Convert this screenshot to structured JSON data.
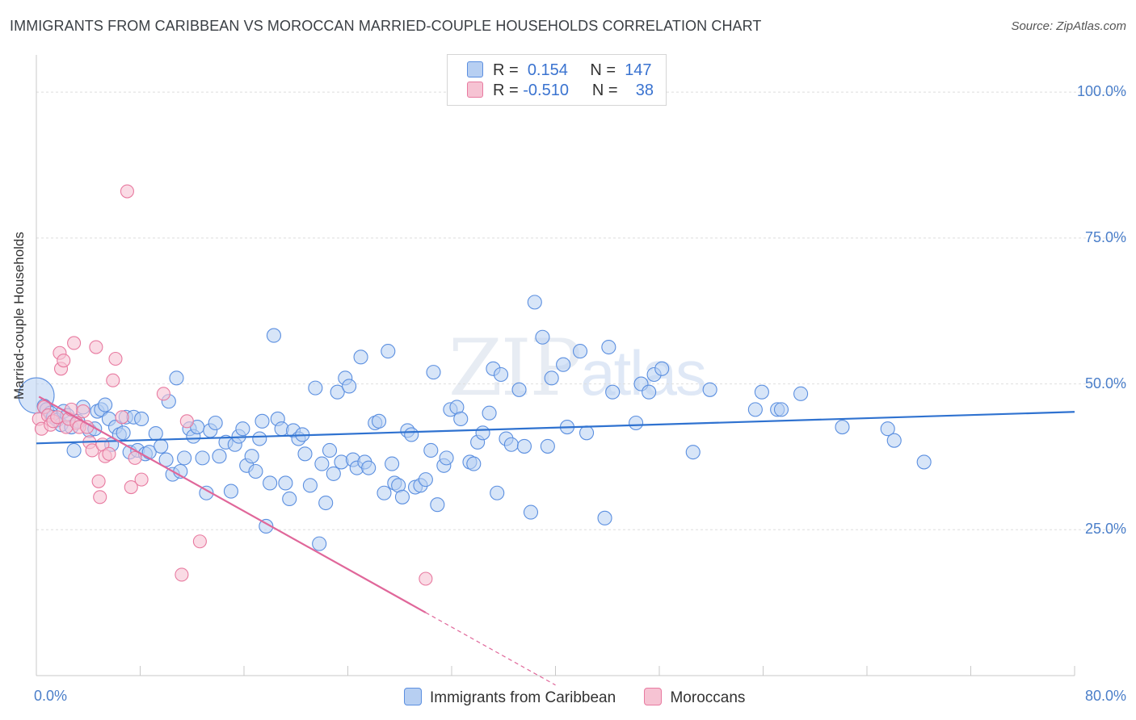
{
  "title": "IMMIGRANTS FROM CARIBBEAN VS MOROCCAN MARRIED-COUPLE HOUSEHOLDS CORRELATION CHART",
  "source": "Source: ZipAtlas.com",
  "watermark": {
    "zip": "ZIP",
    "atlas": "atlas"
  },
  "colors": {
    "blue": "#5b8fe0",
    "blue_fill": "#b7cff2",
    "blue_line": "#2f72d0",
    "pink": "#e87aa0",
    "pink_fill": "#f6c3d3",
    "pink_line": "#e0679a",
    "tick_text": "#4a7ec9"
  },
  "legend": {
    "rows": [
      {
        "r_label": "R =",
        "r_value": "0.154",
        "n_label": "N =",
        "n_value": "147"
      },
      {
        "r_label": "R =",
        "r_value": "-0.510",
        "n_label": "N =",
        "n_value": "38"
      }
    ]
  },
  "bottom_legend": [
    "Immigrants from Caribbean",
    "Moroccans"
  ],
  "chart_data": {
    "type": "scatter",
    "title": "IMMIGRANTS FROM CARIBBEAN VS MOROCCAN MARRIED-COUPLE HOUSEHOLDS CORRELATION CHART",
    "xlabel": "",
    "ylabel": "Married-couple Households",
    "xlim": [
      0,
      80
    ],
    "ylim": [
      0,
      105
    ],
    "x_ticks": [
      "0.0%",
      "80.0%"
    ],
    "y_ticks": [
      "25.0%",
      "50.0%",
      "75.0%",
      "100.0%"
    ],
    "y_tick_values": [
      25,
      50,
      75,
      100
    ],
    "grid": true,
    "legend_position": "top-center",
    "series": [
      {
        "name": "Immigrants from Caribbean",
        "color": "#5b8fe0",
        "trend": {
          "x0": 0,
          "y0": 39.8,
          "x1": 80,
          "y1": 45.2
        },
        "points": [
          [
            0.0,
            48.0
          ],
          [
            0.6,
            46.2
          ],
          [
            0.8,
            45.6
          ],
          [
            1.1,
            45.0
          ],
          [
            1.3,
            44.3
          ],
          [
            1.6,
            43.8
          ],
          [
            1.9,
            43.0
          ],
          [
            2.1,
            45.3
          ],
          [
            2.4,
            44.6
          ],
          [
            2.7,
            42.6
          ],
          [
            2.9,
            38.6
          ],
          [
            3.2,
            43.6
          ],
          [
            3.6,
            46.0
          ],
          [
            4.1,
            42.0
          ],
          [
            4.5,
            42.3
          ],
          [
            4.7,
            45.3
          ],
          [
            5.0,
            45.6
          ],
          [
            5.3,
            46.4
          ],
          [
            5.6,
            44.0
          ],
          [
            5.8,
            39.6
          ],
          [
            6.1,
            42.6
          ],
          [
            6.4,
            41.3
          ],
          [
            6.7,
            41.6
          ],
          [
            6.9,
            44.3
          ],
          [
            7.2,
            38.3
          ],
          [
            7.5,
            44.3
          ],
          [
            7.8,
            38.6
          ],
          [
            8.1,
            44.0
          ],
          [
            8.4,
            38.0
          ],
          [
            8.7,
            38.3
          ],
          [
            9.2,
            41.5
          ],
          [
            9.6,
            39.3
          ],
          [
            10.0,
            37.0
          ],
          [
            10.2,
            47.0
          ],
          [
            10.5,
            34.5
          ],
          [
            10.8,
            51.0
          ],
          [
            11.1,
            35.0
          ],
          [
            11.4,
            37.3
          ],
          [
            11.8,
            42.3
          ],
          [
            12.1,
            41.0
          ],
          [
            12.4,
            42.6
          ],
          [
            12.8,
            37.3
          ],
          [
            13.1,
            31.3
          ],
          [
            13.4,
            42.0
          ],
          [
            13.8,
            43.3
          ],
          [
            14.1,
            37.6
          ],
          [
            14.6,
            40.0
          ],
          [
            15.0,
            31.6
          ],
          [
            15.3,
            39.6
          ],
          [
            15.6,
            41.0
          ],
          [
            15.9,
            42.3
          ],
          [
            16.2,
            36.0
          ],
          [
            16.6,
            37.6
          ],
          [
            16.9,
            35.0
          ],
          [
            17.2,
            40.6
          ],
          [
            17.4,
            43.6
          ],
          [
            17.7,
            25.6
          ],
          [
            18.0,
            33.0
          ],
          [
            18.3,
            58.3
          ],
          [
            18.6,
            44.0
          ],
          [
            18.9,
            42.3
          ],
          [
            19.2,
            33.0
          ],
          [
            19.5,
            30.3
          ],
          [
            19.8,
            42.0
          ],
          [
            20.2,
            40.6
          ],
          [
            20.5,
            41.3
          ],
          [
            20.7,
            38.0
          ],
          [
            21.1,
            32.6
          ],
          [
            21.5,
            49.3
          ],
          [
            21.8,
            22.6
          ],
          [
            22.0,
            36.3
          ],
          [
            22.3,
            29.6
          ],
          [
            22.6,
            38.6
          ],
          [
            22.9,
            34.6
          ],
          [
            23.2,
            48.6
          ],
          [
            23.5,
            36.6
          ],
          [
            23.8,
            51.0
          ],
          [
            24.1,
            49.6
          ],
          [
            24.4,
            37.0
          ],
          [
            24.7,
            35.6
          ],
          [
            25.0,
            54.6
          ],
          [
            25.3,
            36.6
          ],
          [
            25.6,
            35.6
          ],
          [
            26.1,
            43.3
          ],
          [
            26.4,
            43.6
          ],
          [
            26.8,
            31.3
          ],
          [
            27.1,
            55.6
          ],
          [
            27.4,
            36.3
          ],
          [
            27.6,
            33.0
          ],
          [
            27.9,
            32.6
          ],
          [
            28.2,
            30.6
          ],
          [
            28.6,
            42.0
          ],
          [
            28.9,
            41.3
          ],
          [
            29.2,
            32.3
          ],
          [
            29.6,
            32.6
          ],
          [
            30.0,
            33.6
          ],
          [
            30.4,
            38.6
          ],
          [
            30.6,
            52.0
          ],
          [
            30.9,
            29.3
          ],
          [
            31.4,
            36.0
          ],
          [
            31.6,
            37.3
          ],
          [
            31.9,
            45.6
          ],
          [
            32.4,
            46.0
          ],
          [
            32.7,
            44.0
          ],
          [
            33.4,
            36.6
          ],
          [
            33.7,
            36.3
          ],
          [
            34.0,
            40.0
          ],
          [
            34.4,
            41.6
          ],
          [
            34.9,
            45.0
          ],
          [
            35.2,
            52.6
          ],
          [
            35.5,
            31.3
          ],
          [
            35.8,
            51.6
          ],
          [
            36.2,
            40.6
          ],
          [
            36.6,
            39.6
          ],
          [
            37.2,
            49.0
          ],
          [
            37.6,
            39.3
          ],
          [
            38.1,
            28.0
          ],
          [
            38.4,
            64.0
          ],
          [
            39.0,
            58.0
          ],
          [
            39.4,
            39.3
          ],
          [
            39.7,
            51.0
          ],
          [
            40.6,
            53.3
          ],
          [
            40.9,
            42.6
          ],
          [
            41.9,
            55.6
          ],
          [
            42.4,
            41.6
          ],
          [
            43.8,
            27.0
          ],
          [
            44.1,
            56.3
          ],
          [
            44.4,
            48.6
          ],
          [
            46.2,
            43.3
          ],
          [
            46.6,
            50.0
          ],
          [
            47.2,
            48.6
          ],
          [
            47.6,
            51.6
          ],
          [
            48.2,
            52.6
          ],
          [
            50.6,
            38.3
          ],
          [
            51.9,
            49.0
          ],
          [
            55.4,
            45.6
          ],
          [
            55.9,
            48.6
          ],
          [
            57.1,
            45.6
          ],
          [
            57.4,
            45.6
          ],
          [
            58.9,
            48.3
          ],
          [
            62.1,
            42.6
          ],
          [
            65.6,
            42.3
          ],
          [
            66.1,
            40.3
          ],
          [
            68.4,
            36.6
          ]
        ]
      },
      {
        "name": "Moroccans",
        "color": "#e87aa0",
        "trend": {
          "x0": 0.2,
          "y0": 47.8,
          "x1": 30.0,
          "y1": 10.8,
          "dash_to_x": 40.0
        },
        "points": [
          [
            0.2,
            44.0
          ],
          [
            0.4,
            42.3
          ],
          [
            0.6,
            46.0
          ],
          [
            0.9,
            44.6
          ],
          [
            1.1,
            43.0
          ],
          [
            1.3,
            43.6
          ],
          [
            1.6,
            44.3
          ],
          [
            1.8,
            55.3
          ],
          [
            1.9,
            52.6
          ],
          [
            2.1,
            54.0
          ],
          [
            2.3,
            42.6
          ],
          [
            2.5,
            44.0
          ],
          [
            2.7,
            45.6
          ],
          [
            2.9,
            57.0
          ],
          [
            3.1,
            43.3
          ],
          [
            3.3,
            42.6
          ],
          [
            3.6,
            45.3
          ],
          [
            3.9,
            42.6
          ],
          [
            4.1,
            40.0
          ],
          [
            4.3,
            38.6
          ],
          [
            4.6,
            56.3
          ],
          [
            4.8,
            33.3
          ],
          [
            4.9,
            30.6
          ],
          [
            5.1,
            39.6
          ],
          [
            5.3,
            37.6
          ],
          [
            5.6,
            38.0
          ],
          [
            5.9,
            50.6
          ],
          [
            6.1,
            54.3
          ],
          [
            6.6,
            44.3
          ],
          [
            7.0,
            83.0
          ],
          [
            7.3,
            32.3
          ],
          [
            7.6,
            37.3
          ],
          [
            8.1,
            33.6
          ],
          [
            9.8,
            48.3
          ],
          [
            11.2,
            17.3
          ],
          [
            11.6,
            43.6
          ],
          [
            12.6,
            23.0
          ],
          [
            30.0,
            16.6
          ]
        ]
      }
    ]
  }
}
